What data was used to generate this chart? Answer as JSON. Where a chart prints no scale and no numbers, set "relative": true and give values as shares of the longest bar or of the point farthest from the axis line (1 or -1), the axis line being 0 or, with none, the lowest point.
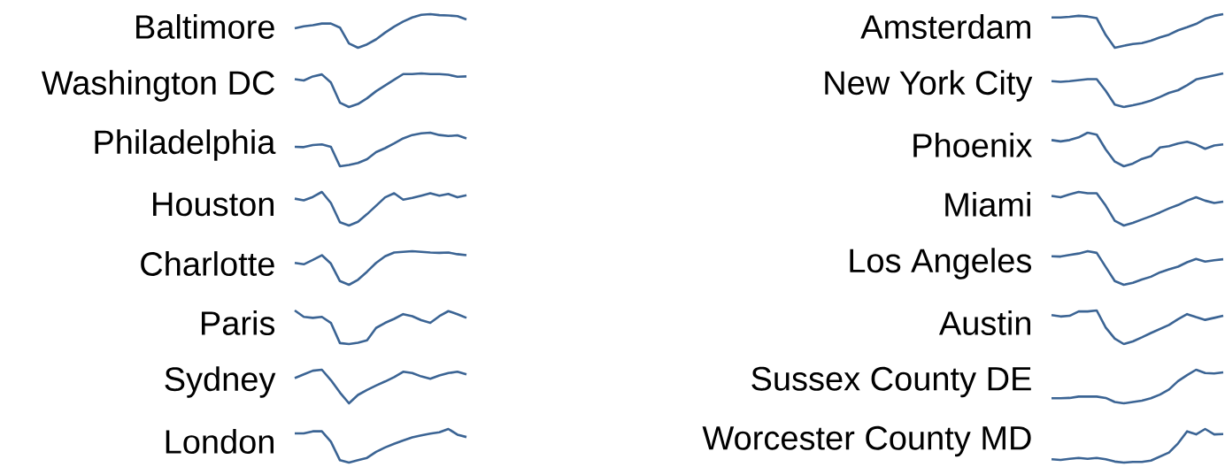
{
  "chart_data": [
    {
      "type": "line",
      "relative": true,
      "color": "#3b6494",
      "title": "Baltimore",
      "categories": [
        null,
        null,
        null,
        null,
        null,
        null,
        null,
        null,
        null,
        null,
        null,
        null,
        null,
        null,
        null,
        null,
        null,
        null,
        null,
        null
      ],
      "values": [
        0.58,
        0.64,
        0.67,
        0.72,
        0.72,
        0.6,
        0.13,
        0,
        0.1,
        0.25,
        0.45,
        0.63,
        0.78,
        0.9,
        0.98,
        1,
        0.97,
        0.96,
        0.94,
        0.84
      ]
    },
    {
      "type": "line",
      "relative": true,
      "color": "#3b6494",
      "title": "Amsterdam",
      "categories": [
        null,
        null,
        null,
        null,
        null,
        null,
        null,
        null,
        null,
        null,
        null,
        null,
        null,
        null,
        null,
        null,
        null,
        null,
        null,
        null
      ],
      "values": [
        0.9,
        0.9,
        0.92,
        0.95,
        0.93,
        0.88,
        0.38,
        0,
        0.06,
        0.11,
        0.14,
        0.21,
        0.31,
        0.39,
        0.52,
        0.61,
        0.71,
        0.86,
        0.95,
        1
      ]
    },
    {
      "type": "line",
      "relative": true,
      "color": "#3b6494",
      "title": "Washington DC",
      "categories": [
        null,
        null,
        null,
        null,
        null,
        null,
        null,
        null,
        null,
        null,
        null,
        null,
        null,
        null,
        null,
        null,
        null,
        null,
        null,
        null
      ],
      "values": [
        0.83,
        0.79,
        0.91,
        0.97,
        0.73,
        0.13,
        0,
        0.09,
        0.26,
        0.47,
        0.64,
        0.81,
        0.98,
        0.98,
        1,
        0.98,
        0.98,
        0.96,
        0.9,
        0.91
      ]
    },
    {
      "type": "line",
      "relative": true,
      "color": "#3b6494",
      "title": "New York City",
      "categories": [
        null,
        null,
        null,
        null,
        null,
        null,
        null,
        null,
        null,
        null,
        null,
        null,
        null,
        null,
        null,
        null,
        null,
        null,
        null,
        null
      ],
      "values": [
        0.77,
        0.75,
        0.77,
        0.8,
        0.83,
        0.83,
        0.48,
        0.07,
        0,
        0.05,
        0.11,
        0.19,
        0.3,
        0.42,
        0.5,
        0.65,
        0.82,
        0.88,
        0.94,
        1
      ]
    },
    {
      "type": "line",
      "relative": true,
      "color": "#3b6494",
      "title": "Philadelphia",
      "categories": [
        null,
        null,
        null,
        null,
        null,
        null,
        null,
        null,
        null,
        null,
        null,
        null,
        null,
        null,
        null,
        null,
        null,
        null,
        null,
        null
      ],
      "values": [
        0.58,
        0.57,
        0.63,
        0.65,
        0.58,
        0,
        0.04,
        0.1,
        0.21,
        0.42,
        0.54,
        0.68,
        0.83,
        0.93,
        0.98,
        1,
        0.93,
        0.9,
        0.92,
        0.83
      ]
    },
    {
      "type": "line",
      "relative": true,
      "color": "#3b6494",
      "title": "Phoenix",
      "categories": [
        null,
        null,
        null,
        null,
        null,
        null,
        null,
        null,
        null,
        null,
        null,
        null,
        null,
        null,
        null,
        null,
        null,
        null,
        null,
        null
      ],
      "values": [
        0.78,
        0.74,
        0.78,
        0.86,
        1,
        0.94,
        0.5,
        0.14,
        0,
        0.08,
        0.22,
        0.3,
        0.56,
        0.6,
        0.68,
        0.73,
        0.65,
        0.52,
        0.62,
        0.65
      ]
    },
    {
      "type": "line",
      "relative": true,
      "color": "#3b6494",
      "title": "Houston",
      "categories": [
        null,
        null,
        null,
        null,
        null,
        null,
        null,
        null,
        null,
        null,
        null,
        null,
        null,
        null,
        null,
        null,
        null,
        null,
        null,
        null
      ],
      "values": [
        0.8,
        0.75,
        0.85,
        1,
        0.67,
        0.1,
        0,
        0.11,
        0.34,
        0.59,
        0.84,
        0.96,
        0.77,
        0.82,
        0.89,
        0.96,
        0.89,
        0.94,
        0.84,
        0.9
      ]
    },
    {
      "type": "line",
      "relative": true,
      "color": "#3b6494",
      "title": "Miami",
      "categories": [
        null,
        null,
        null,
        null,
        null,
        null,
        null,
        null,
        null,
        null,
        null,
        null,
        null,
        null,
        null,
        null,
        null,
        null,
        null,
        null
      ],
      "values": [
        0.88,
        0.84,
        0.93,
        1,
        0.96,
        0.96,
        0.59,
        0.14,
        0,
        0.08,
        0.18,
        0.28,
        0.39,
        0.51,
        0.61,
        0.74,
        0.84,
        0.74,
        0.67,
        0.71
      ]
    },
    {
      "type": "line",
      "relative": true,
      "color": "#3b6494",
      "title": "Charlotte",
      "categories": [
        null,
        null,
        null,
        null,
        null,
        null,
        null,
        null,
        null,
        null,
        null,
        null,
        null,
        null,
        null,
        null,
        null,
        null,
        null,
        null
      ],
      "values": [
        0.65,
        0.61,
        0.74,
        0.88,
        0.63,
        0.11,
        0,
        0.15,
        0.39,
        0.65,
        0.85,
        0.96,
        0.98,
        1,
        0.98,
        0.96,
        0.95,
        0.96,
        0.91,
        0.88
      ]
    },
    {
      "type": "line",
      "relative": true,
      "color": "#3b6494",
      "title": "Los Angeles",
      "categories": [
        null,
        null,
        null,
        null,
        null,
        null,
        null,
        null,
        null,
        null,
        null,
        null,
        null,
        null,
        null,
        null,
        null,
        null,
        null,
        null
      ],
      "values": [
        0.85,
        0.84,
        0.89,
        0.93,
        1,
        0.95,
        0.53,
        0.11,
        0,
        0.06,
        0.16,
        0.24,
        0.37,
        0.46,
        0.54,
        0.67,
        0.77,
        0.69,
        0.73,
        0.76
      ]
    },
    {
      "type": "line",
      "relative": true,
      "color": "#3b6494",
      "title": "Paris",
      "categories": [
        null,
        null,
        null,
        null,
        null,
        null,
        null,
        null,
        null,
        null,
        null,
        null,
        null,
        null,
        null,
        null,
        null,
        null,
        null,
        null
      ],
      "values": [
        1,
        0.81,
        0.78,
        0.81,
        0.63,
        0.03,
        0,
        0.04,
        0.11,
        0.48,
        0.63,
        0.75,
        0.89,
        0.83,
        0.71,
        0.63,
        0.83,
        0.98,
        0.89,
        0.78
      ]
    },
    {
      "type": "line",
      "relative": true,
      "color": "#3b6494",
      "title": "Austin",
      "categories": [
        null,
        null,
        null,
        null,
        null,
        null,
        null,
        null,
        null,
        null,
        null,
        null,
        null,
        null,
        null,
        null,
        null,
        null,
        null,
        null
      ],
      "values": [
        0.86,
        0.82,
        0.84,
        0.97,
        0.97,
        1,
        0.49,
        0.16,
        0,
        0.08,
        0.2,
        0.33,
        0.45,
        0.57,
        0.74,
        0.89,
        0.8,
        0.72,
        0.78,
        0.84
      ]
    },
    {
      "type": "line",
      "relative": true,
      "color": "#3b6494",
      "title": "Sydney",
      "categories": [
        null,
        null,
        null,
        null,
        null,
        null,
        null,
        null,
        null,
        null,
        null,
        null,
        null,
        null,
        null,
        null,
        null,
        null,
        null,
        null
      ],
      "values": [
        0.75,
        0.86,
        0.97,
        1,
        0.69,
        0.32,
        0,
        0.25,
        0.4,
        0.53,
        0.65,
        0.78,
        0.94,
        0.9,
        0.8,
        0.73,
        0.83,
        0.9,
        0.94,
        0.86
      ]
    },
    {
      "type": "line",
      "relative": true,
      "color": "#3b6494",
      "title": "Sussex County DE",
      "categories": [
        null,
        null,
        null,
        null,
        null,
        null,
        null,
        null,
        null,
        null,
        null,
        null,
        null,
        null,
        null,
        null,
        null,
        null,
        null,
        null
      ],
      "values": [
        0.15,
        0.15,
        0.16,
        0.2,
        0.2,
        0.2,
        0.16,
        0.04,
        0,
        0.04,
        0.08,
        0.15,
        0.26,
        0.41,
        0.66,
        0.84,
        1,
        0.9,
        0.89,
        0.92
      ]
    },
    {
      "type": "line",
      "relative": true,
      "color": "#3b6494",
      "title": "London",
      "categories": [
        null,
        null,
        null,
        null,
        null,
        null,
        null,
        null,
        null,
        null,
        null,
        null,
        null,
        null,
        null,
        null,
        null,
        null,
        null,
        null
      ],
      "values": [
        0.87,
        0.87,
        0.93,
        0.93,
        0.62,
        0.07,
        0,
        0.07,
        0.14,
        0.32,
        0.45,
        0.56,
        0.66,
        0.75,
        0.81,
        0.86,
        0.9,
        1,
        0.83,
        0.76
      ]
    },
    {
      "type": "line",
      "relative": true,
      "color": "#3b6494",
      "title": "Worcester County MD",
      "categories": [
        null,
        null,
        null,
        null,
        null,
        null,
        null,
        null,
        null,
        null,
        null,
        null,
        null,
        null,
        null,
        null,
        null,
        null,
        null,
        null
      ],
      "values": [
        0.1,
        0.08,
        0.11,
        0.14,
        0.11,
        0.14,
        0.1,
        0.03,
        0,
        0.02,
        0.02,
        0.06,
        0.18,
        0.3,
        0.57,
        0.93,
        0.84,
        1,
        0.84,
        0.85
      ]
    }
  ]
}
